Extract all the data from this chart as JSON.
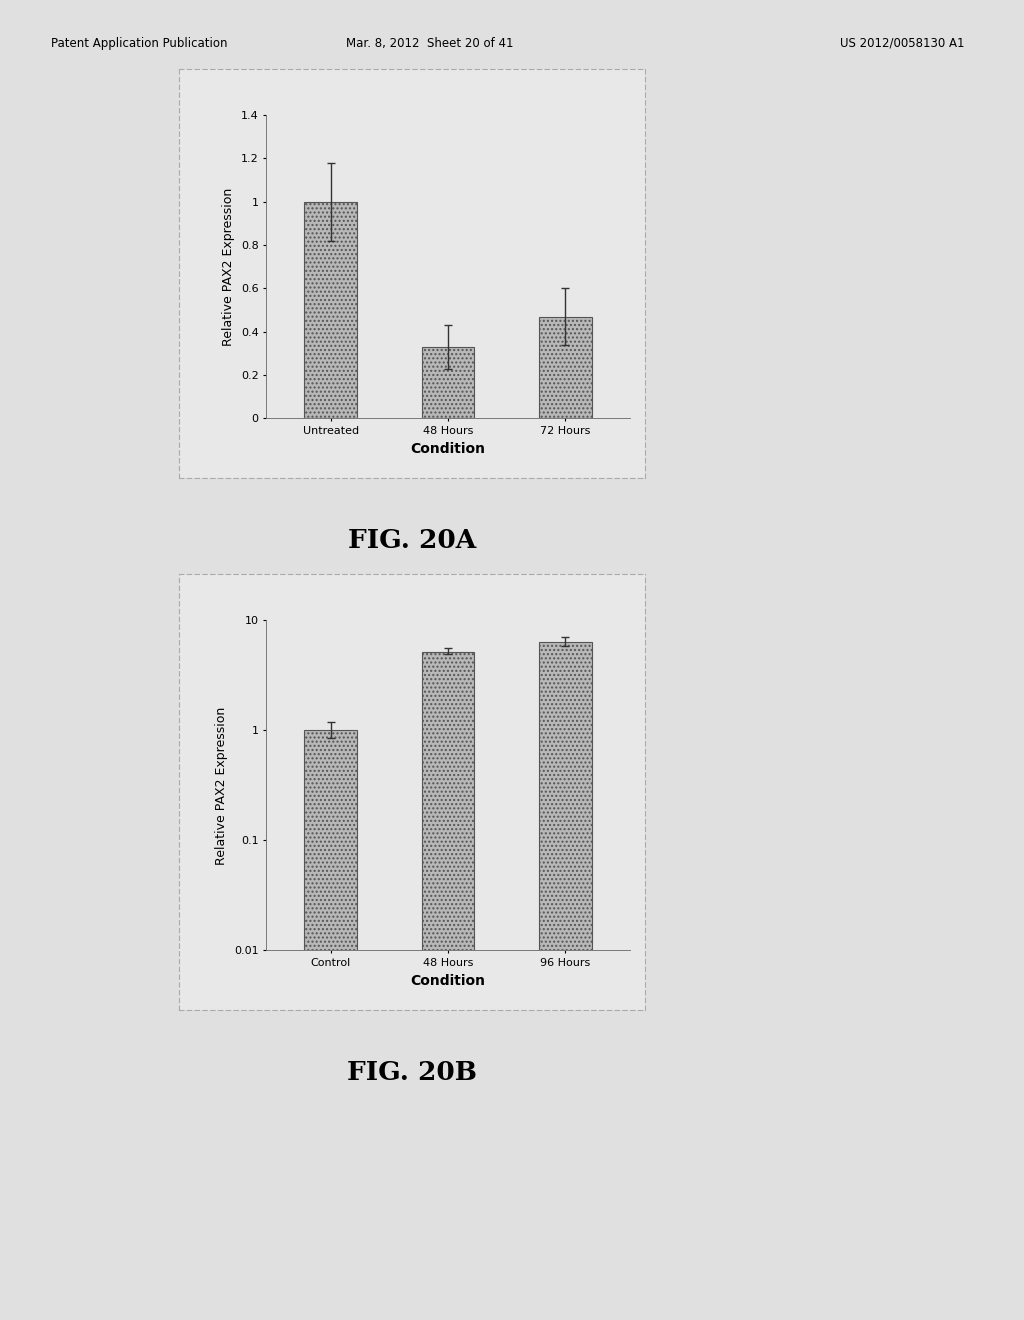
{
  "fig20a": {
    "categories": [
      "Untreated",
      "48 Hours",
      "72 Hours"
    ],
    "values": [
      1.0,
      0.33,
      0.47
    ],
    "errors": [
      0.18,
      0.1,
      0.13
    ],
    "ylabel": "Relative PAX2 Expression",
    "xlabel": "Condition",
    "ylim": [
      0,
      1.4
    ],
    "yticks": [
      0,
      0.2,
      0.4,
      0.6,
      0.8,
      1.0,
      1.2,
      1.4
    ],
    "ytick_labels": [
      "0",
      "0.2",
      "0.4",
      "0.6",
      "0.8",
      "1",
      "1.2",
      "1.4"
    ],
    "bar_color": "#b8b8b8",
    "bar_edgecolor": "#555555",
    "error_color": "#333333",
    "figcaption": "FIG. 20A"
  },
  "fig20b": {
    "categories": [
      "Control",
      "48 Hours",
      "96 Hours"
    ],
    "values": [
      1.0,
      5.2,
      6.3
    ],
    "errors_plus": [
      0.2,
      0.4,
      0.7
    ],
    "errors_minus": [
      0.15,
      0.3,
      0.5
    ],
    "ylabel": "Relative PAX2 Expression",
    "xlabel": "Condition",
    "ylim": [
      0.01,
      10
    ],
    "yticks": [
      0.01,
      0.1,
      1,
      10
    ],
    "ytick_labels": [
      "0.01",
      "0.1",
      "1",
      "10"
    ],
    "bar_color": "#b8b8b8",
    "bar_edgecolor": "#555555",
    "error_color": "#333333",
    "figcaption": "FIG. 20B"
  },
  "page_header_left": "Patent Application Publication",
  "page_header_mid": "Mar. 8, 2012  Sheet 20 of 41",
  "page_header_right": "US 2012/0058130 A1",
  "bg_color": "#c8c8c8",
  "page_color": "#e0e0e0",
  "chart_bg_color": "#e8e8e8",
  "border_color": "#aaaaaa"
}
